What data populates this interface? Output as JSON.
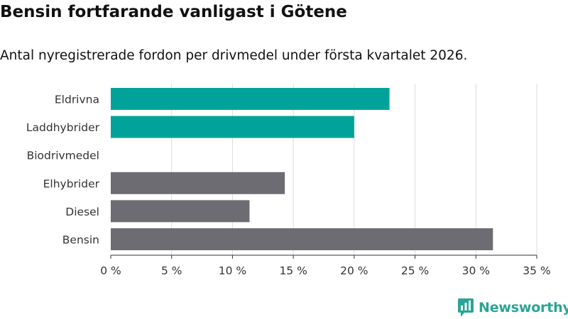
{
  "title": "Bensin fortfarande vanligast i Götene",
  "subtitle": "Antal nyregistrerade fordon per drivmedel under första kvartalet 2026.",
  "brand": {
    "name": "Newsworthy",
    "color": "#2aa594",
    "icon": "newsworthy-logo-icon"
  },
  "colors": {
    "highlight": "#00a39a",
    "default": "#6d6c72",
    "grid": "#dddddd"
  },
  "chart_data": {
    "type": "bar",
    "orientation": "horizontal",
    "title": "Bensin fortfarande vanligast i Götene",
    "subtitle": "Antal nyregistrerade fordon per drivmedel under första kvartalet 2026.",
    "xlabel": "",
    "ylabel": "",
    "categories": [
      "Eldrivna",
      "Laddhybrider",
      "Biodrivmedel",
      "Elhybrider",
      "Diesel",
      "Bensin"
    ],
    "values": [
      22.9,
      20.0,
      0,
      14.3,
      11.4,
      31.4
    ],
    "highlight": [
      true,
      true,
      true,
      false,
      false,
      false
    ],
    "xlim": [
      0,
      35
    ],
    "xticks": [
      0,
      5,
      10,
      15,
      20,
      25,
      30,
      35
    ],
    "tick_labels": [
      "0 %",
      "5 %",
      "10 %",
      "15 %",
      "20 %",
      "25 %",
      "30 %",
      "35 %"
    ],
    "grid": true
  }
}
